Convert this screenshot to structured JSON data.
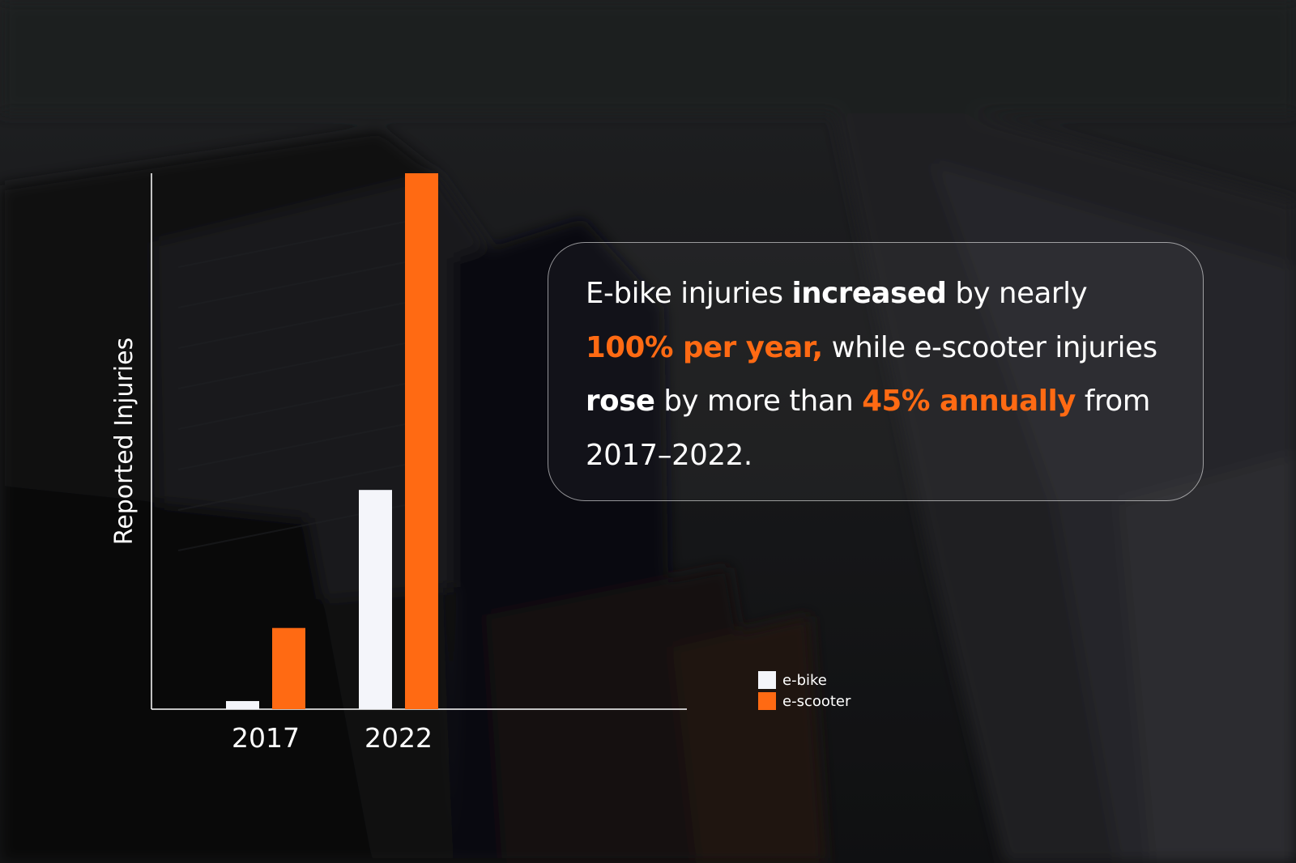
{
  "colors": {
    "background": "#1c1d20",
    "e_bike": "#f4f5fa",
    "e_scooter": "#ff6a13",
    "axis": "#ffffff"
  },
  "chart_data": {
    "type": "bar",
    "categories": [
      "2017",
      "2022"
    ],
    "series": [
      {
        "name": "e-bike",
        "values": [
          1,
          27
        ]
      },
      {
        "name": "e-scooter",
        "values": [
          10,
          66
        ]
      }
    ],
    "title": "",
    "xlabel": "",
    "ylabel": "Reported Injuries",
    "ylim": [
      0,
      66
    ],
    "y_ticks_shown": false,
    "grid": false,
    "legend_position": "bottom-right"
  },
  "callout": {
    "seg1": "E-bike injuries ",
    "seg2": "increased",
    "seg3": " by nearly ",
    "seg4": "100% per year,",
    "seg5": " while e-scooter injuries ",
    "seg6": "rose",
    "seg7": " by more than ",
    "seg8": "45% annually",
    "seg9": " from 2017–2022."
  }
}
